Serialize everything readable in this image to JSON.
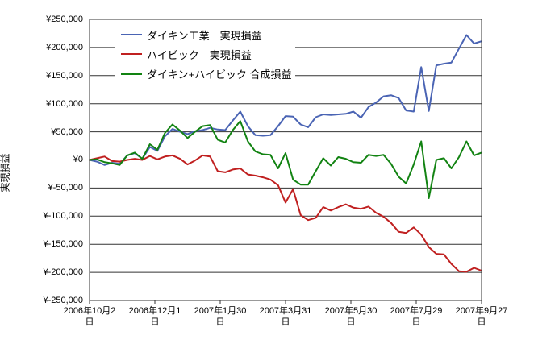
{
  "chart": {
    "y_axis_title": "実現損益",
    "y_ticks": [
      "¥250,000",
      "¥200,000",
      "¥150,000",
      "¥100,000",
      "¥50,000",
      "¥0",
      "¥-50,000",
      "¥-100,000",
      "¥-150,000",
      "¥-200,000",
      "¥-250,000"
    ],
    "x_ticks": [
      {
        "l1": "2006年10月2",
        "l2": "日"
      },
      {
        "l1": "2006年12月1",
        "l2": "日"
      },
      {
        "l1": "2007年1月30",
        "l2": "日"
      },
      {
        "l1": "2007年3月31",
        "l2": "日"
      },
      {
        "l1": "2007年5月30",
        "l2": "日"
      },
      {
        "l1": "2007年7月29",
        "l2": "日"
      },
      {
        "l1": "2007年9月27",
        "l2": "日"
      }
    ],
    "legend": [
      {
        "label": "ダイキン工業　実現損益",
        "color": "#4a64b4"
      },
      {
        "label": "ハイビック　実現損益",
        "color": "#c02020"
      },
      {
        "label": "ダイキン+ハイビック 合成損益",
        "color": "#128312"
      }
    ],
    "grid_color": "#333333",
    "frame_color": "#333333"
  },
  "chart_data": {
    "type": "line",
    "title": "",
    "xlabel": "",
    "ylabel": "実現損益",
    "ylim": [
      -250000,
      250000
    ],
    "y_tick_step": 50000,
    "grid": true,
    "legend_position": "top-left-inside",
    "x_tick_labels": [
      "2006年10月2日",
      "2006年12月1日",
      "2007年1月30日",
      "2007年3月31日",
      "2007年5月30日",
      "2007年7月29日",
      "2007年9月27日"
    ],
    "x_is_weekly_index": true,
    "series": [
      {
        "name": "ダイキン工業 実現損益",
        "color": "#4a64b4",
        "values": [
          0,
          -3000,
          -9000,
          -5000,
          -7000,
          8000,
          12000,
          2000,
          23000,
          16000,
          42000,
          55000,
          50000,
          46000,
          51000,
          53000,
          57000,
          54000,
          53000,
          70000,
          86000,
          60000,
          44000,
          43000,
          44000,
          60000,
          78000,
          77000,
          63000,
          58000,
          76000,
          81000,
          80000,
          81000,
          82000,
          86000,
          75000,
          94000,
          102000,
          113000,
          115000,
          110000,
          88000,
          86000,
          165000,
          87000,
          168000,
          171000,
          173000,
          198000,
          222000,
          207000,
          211000
        ]
      },
      {
        "name": "ハイビック 実現損益",
        "color": "#c02020",
        "values": [
          0,
          3000,
          6000,
          -2000,
          -3000,
          0,
          2000,
          0,
          7000,
          1000,
          6000,
          8000,
          2000,
          -8000,
          -1000,
          8000,
          6000,
          -20000,
          -22000,
          -17000,
          -15000,
          -26000,
          -28000,
          -31000,
          -35000,
          -45000,
          -76000,
          -52000,
          -98000,
          -107000,
          -103000,
          -84000,
          -90000,
          -84000,
          -79000,
          -85000,
          -87000,
          -83000,
          -94000,
          -101000,
          -112000,
          -128000,
          -130000,
          -120000,
          -133000,
          -155000,
          -167000,
          -168000,
          -185000,
          -198000,
          -199000,
          -192000,
          -197000
        ]
      },
      {
        "name": "ダイキン+ハイビック 合成損益",
        "color": "#128312",
        "values": [
          0,
          1000,
          -4000,
          -6000,
          -9000,
          8000,
          13000,
          2000,
          28000,
          18000,
          48000,
          63000,
          52000,
          39000,
          50000,
          60000,
          62000,
          36000,
          31000,
          53000,
          69000,
          33000,
          15000,
          10000,
          9000,
          -15000,
          12000,
          -35000,
          -44000,
          -44000,
          -20000,
          3000,
          -10000,
          5000,
          2000,
          -4000,
          -5000,
          9000,
          7000,
          9000,
          -7000,
          -30000,
          -42000,
          -8000,
          33000,
          -68000,
          0,
          3000,
          -15000,
          5000,
          33000,
          8000,
          13000
        ]
      }
    ]
  }
}
